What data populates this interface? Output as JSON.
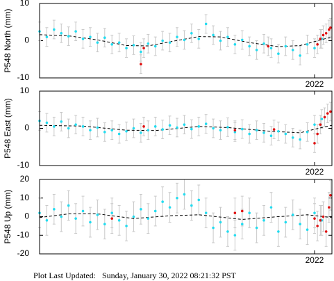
{
  "chart_data": [
    {
      "type": "scatter",
      "y_label": "P548 North (mm)",
      "xlim": [
        2020.1,
        2022.12
      ],
      "xticks": [
        2022
      ],
      "ylim": [
        -10,
        10
      ],
      "yticks": [
        10,
        0,
        -10
      ],
      "series": [
        {
          "color": "#22dcf0",
          "error": 2.5,
          "x": [
            2020.1,
            2020.15,
            2020.2,
            2020.25,
            2020.3,
            2020.35,
            2020.4,
            2020.45,
            2020.5,
            2020.55,
            2020.6,
            2020.65,
            2020.7,
            2020.75,
            2020.8,
            2020.85,
            2020.9,
            2020.95,
            2021.0,
            2021.05,
            2021.1,
            2021.15,
            2021.2,
            2021.25,
            2021.3,
            2021.35,
            2021.4,
            2021.45,
            2021.5,
            2021.55,
            2021.6,
            2021.65,
            2021.7,
            2021.75,
            2021.8,
            2021.85,
            2021.9,
            2021.95,
            2022.0,
            2022.05
          ],
          "values": [
            2.5,
            1.0,
            3.0,
            2.0,
            1.2,
            2.5,
            0.5,
            1.0,
            -0.5,
            0.8,
            -1.0,
            -0.5,
            -2.0,
            -1.2,
            -3.0,
            -0.8,
            -1.5,
            0.0,
            -0.5,
            1.0,
            0.2,
            2.0,
            0.5,
            4.5,
            1.5,
            0.0,
            1.0,
            -1.0,
            0.2,
            -1.5,
            -2.5,
            -0.8,
            -2.0,
            -3.5,
            -1.5,
            -2.5,
            -4.0,
            -1.0,
            -2.0,
            0.5
          ]
        },
        {
          "color": "#e01010",
          "error": 2.5,
          "x": [
            2020.8,
            2020.82,
            2021.68,
            2022.02,
            2022.04,
            2022.06,
            2022.08,
            2022.1,
            2022.11
          ],
          "values": [
            -6.3,
            -2.0,
            -1.5,
            -1.0,
            0.5,
            1.5,
            2.0,
            3.0,
            3.5
          ]
        }
      ],
      "model": {
        "color": "#000000",
        "x": [
          2020.1,
          2020.3,
          2020.5,
          2020.7,
          2020.85,
          2021.0,
          2021.2,
          2021.35,
          2021.55,
          2021.75,
          2021.9,
          2022.05,
          2022.12
        ],
        "values": [
          1.6,
          1.3,
          0.2,
          -1.3,
          -1.4,
          -0.3,
          1.1,
          1.0,
          -0.5,
          -1.6,
          -1.3,
          0.3,
          1.0
        ]
      }
    },
    {
      "type": "scatter",
      "y_label": "P548 East (mm)",
      "xlim": [
        2020.1,
        2022.12
      ],
      "xticks": [
        2022
      ],
      "ylim": [
        -10,
        10
      ],
      "yticks": [
        10,
        0,
        -10
      ],
      "series": [
        {
          "color": "#22dcf0",
          "error": 2.5,
          "x": [
            2020.1,
            2020.15,
            2020.2,
            2020.25,
            2020.3,
            2020.35,
            2020.4,
            2020.45,
            2020.5,
            2020.55,
            2020.6,
            2020.65,
            2020.7,
            2020.75,
            2020.8,
            2020.85,
            2020.9,
            2020.95,
            2021.0,
            2021.05,
            2021.1,
            2021.15,
            2021.2,
            2021.25,
            2021.3,
            2021.35,
            2021.4,
            2021.45,
            2021.5,
            2021.55,
            2021.6,
            2021.65,
            2021.7,
            2021.75,
            2021.8,
            2021.85,
            2021.9,
            2021.95,
            2022.0,
            2022.05
          ],
          "values": [
            2.0,
            1.5,
            0.5,
            1.8,
            0.0,
            1.0,
            0.5,
            -0.5,
            0.2,
            -1.0,
            -0.5,
            -1.5,
            -0.8,
            0.0,
            -1.2,
            -0.5,
            0.5,
            -0.3,
            0.8,
            0.2,
            1.0,
            -0.2,
            0.5,
            1.2,
            0.0,
            -0.5,
            0.3,
            -1.0,
            -0.2,
            -1.5,
            -0.5,
            -1.2,
            -2.0,
            -0.8,
            -1.5,
            -2.5,
            -3.0,
            -1.0,
            1.0,
            2.5
          ]
        },
        {
          "color": "#e01010",
          "error": 2.5,
          "x": [
            2020.82,
            2021.45,
            2021.72,
            2022.0,
            2022.02,
            2022.04,
            2022.07,
            2022.09,
            2022.11
          ],
          "values": [
            0.5,
            -0.5,
            -0.3,
            -4.0,
            -1.5,
            1.0,
            3.0,
            4.0,
            4.5
          ]
        }
      ],
      "model": {
        "color": "#000000",
        "x": [
          2020.1,
          2020.4,
          2020.7,
          2020.9,
          2021.2,
          2021.4,
          2021.7,
          2021.9,
          2022.05,
          2022.12
        ],
        "values": [
          0.8,
          0.6,
          -0.5,
          -0.6,
          0.5,
          0.2,
          -0.8,
          -1.2,
          0.2,
          0.8
        ]
      }
    },
    {
      "type": "scatter",
      "y_label": "P548 Up (mm)",
      "xlim": [
        2020.1,
        2022.12
      ],
      "xticks": [
        2022
      ],
      "ylim": [
        -20,
        20
      ],
      "yticks": [
        20,
        10,
        0,
        -10,
        -20
      ],
      "series": [
        {
          "color": "#22dcf0",
          "error": 8,
          "x": [
            2020.1,
            2020.15,
            2020.2,
            2020.25,
            2020.3,
            2020.35,
            2020.4,
            2020.45,
            2020.5,
            2020.55,
            2020.6,
            2020.65,
            2020.7,
            2020.75,
            2020.8,
            2020.85,
            2020.9,
            2020.95,
            2021.0,
            2021.05,
            2021.1,
            2021.15,
            2021.2,
            2021.25,
            2021.3,
            2021.35,
            2021.4,
            2021.45,
            2021.5,
            2021.55,
            2021.6,
            2021.65,
            2021.7,
            2021.75,
            2021.8,
            2021.85,
            2021.9,
            2021.95,
            2022.0,
            2022.05
          ],
          "values": [
            2.0,
            -2.0,
            4.0,
            0.0,
            6.0,
            -1.0,
            3.0,
            -3.0,
            1.0,
            -4.0,
            2.0,
            -2.0,
            -5.0,
            0.0,
            4.0,
            -1.0,
            3.0,
            8.0,
            5.0,
            10.0,
            12.0,
            6.0,
            9.0,
            2.0,
            -6.0,
            -3.0,
            -8.0,
            -10.0,
            -4.0,
            2.0,
            -6.0,
            -2.0,
            5.0,
            -8.0,
            -3.0,
            1.0,
            -4.0,
            -7.0,
            2.0,
            -2.0
          ]
        },
        {
          "color": "#e01010",
          "error": 8,
          "x": [
            2020.6,
            2021.45,
            2021.5,
            2022.0,
            2022.02,
            2022.04,
            2022.06,
            2022.08,
            2022.1,
            2022.11
          ],
          "values": [
            -1.0,
            2.0,
            3.0,
            -1.0,
            -5.0,
            -2.0,
            0.0,
            -8.0,
            5.0,
            11.5
          ]
        }
      ],
      "model": {
        "color": "#000000",
        "x": [
          2020.1,
          2020.3,
          2020.5,
          2020.75,
          2021.0,
          2021.2,
          2021.5,
          2021.75,
          2021.95,
          2022.12
        ],
        "values": [
          -0.5,
          1.5,
          1.5,
          -1.0,
          0.5,
          1.0,
          -1.5,
          0.0,
          1.0,
          -0.5
        ]
      }
    }
  ],
  "footer": {
    "label": "Plot Last Updated:",
    "value": "Sunday, January 30, 2022 08:21:32 PST"
  }
}
